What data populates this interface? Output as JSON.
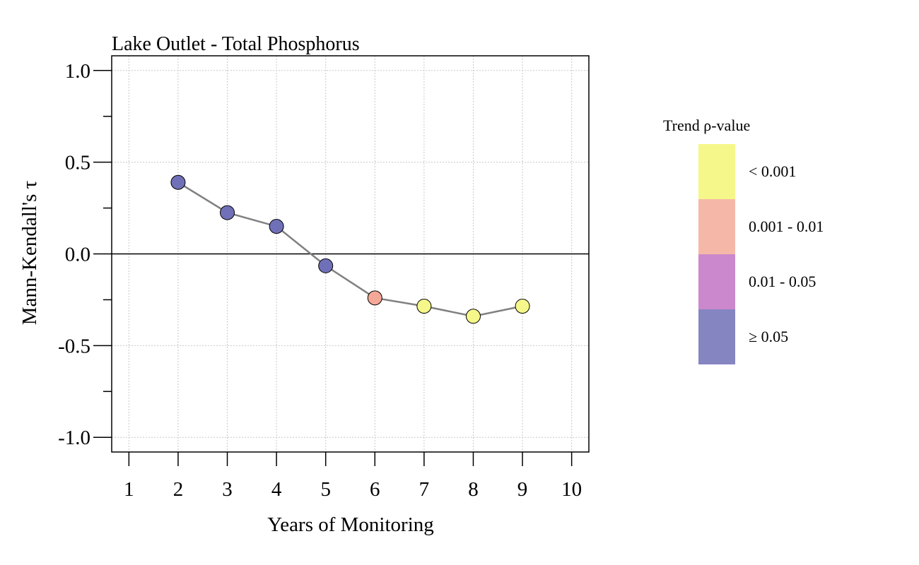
{
  "chart_data": {
    "type": "scatter",
    "title": "Lake Outlet - Total Phosphorus",
    "xlabel": "Years of Monitoring",
    "ylabel": "Mann-Kendall's τ",
    "xlim": [
      0.65,
      10.35
    ],
    "ylim": [
      -1.08,
      1.08
    ],
    "x_ticks": [
      "1",
      "2",
      "3",
      "4",
      "5",
      "6",
      "7",
      "8",
      "9",
      "10"
    ],
    "y_ticks": [
      "1.0",
      "0.5",
      "0.0",
      "-0.5",
      "-1.0"
    ],
    "y_tick_values": [
      1.0,
      0.5,
      0.0,
      -0.5,
      -1.0
    ],
    "grid": true,
    "reference_line": 0,
    "points": [
      {
        "x": 2,
        "y": 0.39,
        "class": "≥ 0.05"
      },
      {
        "x": 3,
        "y": 0.225,
        "class": "≥ 0.05"
      },
      {
        "x": 4,
        "y": 0.15,
        "class": "≥ 0.05"
      },
      {
        "x": 5,
        "y": -0.065,
        "class": "≥ 0.05"
      },
      {
        "x": 6,
        "y": -0.24,
        "class": "0.001 - 0.01"
      },
      {
        "x": 7,
        "y": -0.285,
        "class": "< 0.001"
      },
      {
        "x": 8,
        "y": -0.34,
        "class": "< 0.001"
      },
      {
        "x": 9,
        "y": -0.285,
        "class": "< 0.001"
      }
    ],
    "line_color": "#808080",
    "legend": {
      "title": "Trend ρ-value",
      "placement": "right",
      "items": [
        {
          "label": "< 0.001",
          "color": "#f5f78a"
        },
        {
          "label": "0.001 - 0.01",
          "color": "#f5b8a8"
        },
        {
          "label": "0.01 - 0.05",
          "color": "#cc88cc"
        },
        {
          "label": "≥ 0.05",
          "color": "#8585c2"
        }
      ]
    },
    "marker_colors": {
      "< 0.001": "#f5f78a",
      "0.001 - 0.01": "#f5a898",
      "0.01 - 0.05": "#cc88cc",
      "≥ 0.05": "#7070b8"
    }
  }
}
